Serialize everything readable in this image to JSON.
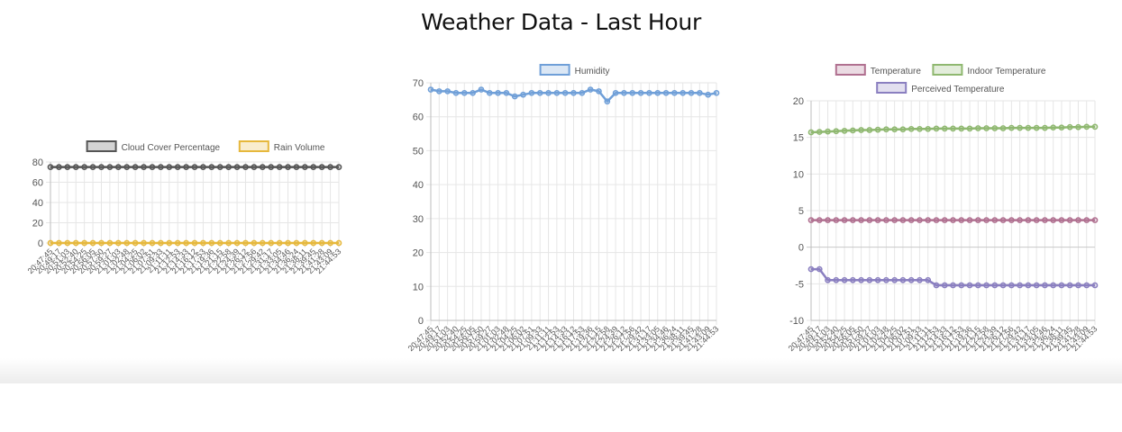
{
  "page": {
    "title": "Weather Data - Last Hour"
  },
  "chart_data": [
    {
      "type": "line",
      "x": [
        "20:47:45",
        "20:49:17",
        "20:51:03",
        "20:52:40",
        "20:54:25",
        "20:56:05",
        "20:57:50",
        "20:59:27",
        "21:01:03",
        "21:02:48",
        "21:04:25",
        "21:06:02",
        "21:07:51",
        "21:09:33",
        "21:11:11",
        "21:12:53",
        "21:14:33",
        "21:16:12",
        "21:17:53",
        "21:19:36",
        "21:21:15",
        "21:22:58",
        "21:24:39",
        "21:26:12",
        "21:27:56",
        "21:29:42",
        "21:31:17",
        "21:33:05",
        "21:34:46",
        "21:36:24",
        "21:38:11",
        "21:39:45",
        "21:41:28",
        "21:43:09",
        "21:44:53"
      ],
      "series": [
        {
          "name": "Cloud Cover Percentage",
          "color": "#555555",
          "values": [
            75,
            75,
            75,
            75,
            75,
            75,
            75,
            75,
            75,
            75,
            75,
            75,
            75,
            75,
            75,
            75,
            75,
            75,
            75,
            75,
            75,
            75,
            75,
            75,
            75,
            75,
            75,
            75,
            75,
            75,
            75,
            75,
            75,
            75,
            75
          ]
        },
        {
          "name": "Rain Volume",
          "color": "#e6b83c",
          "values": [
            0,
            0,
            0,
            0,
            0,
            0,
            0,
            0,
            0,
            0,
            0,
            0,
            0,
            0,
            0,
            0,
            0,
            0,
            0,
            0,
            0,
            0,
            0,
            0,
            0,
            0,
            0,
            0,
            0,
            0,
            0,
            0,
            0,
            0,
            0
          ]
        }
      ],
      "ylim": [
        0,
        80
      ],
      "yticks": [
        0,
        20,
        40,
        60,
        80
      ],
      "grid": true,
      "legend": "top"
    },
    {
      "type": "line",
      "x": [
        "20:47:45",
        "20:49:17",
        "20:51:03",
        "20:52:40",
        "20:54:25",
        "20:56:05",
        "20:57:50",
        "20:59:27",
        "21:01:03",
        "21:02:48",
        "21:04:25",
        "21:06:02",
        "21:07:51",
        "21:09:33",
        "21:11:11",
        "21:12:53",
        "21:14:33",
        "21:16:12",
        "21:17:53",
        "21:19:36",
        "21:21:15",
        "21:22:58",
        "21:24:39",
        "21:26:12",
        "21:27:56",
        "21:29:42",
        "21:31:17",
        "21:33:05",
        "21:34:46",
        "21:36:24",
        "21:38:11",
        "21:39:45",
        "21:41:28",
        "21:43:09",
        "21:44:53"
      ],
      "series": [
        {
          "name": "Humidity",
          "color": "#6f9fd8",
          "values": [
            68,
            67.5,
            67.5,
            67,
            67,
            67,
            68,
            67,
            67,
            67,
            66,
            66.5,
            67,
            67,
            67,
            67,
            67,
            67,
            67,
            68,
            67.5,
            64.5,
            67,
            67,
            67,
            67,
            67,
            67,
            67,
            67,
            67,
            67,
            67,
            66.5,
            67
          ]
        }
      ],
      "ylim": [
        0,
        70
      ],
      "yticks": [
        0,
        10,
        20,
        30,
        40,
        50,
        60,
        70
      ],
      "grid": true,
      "legend": "top"
    },
    {
      "type": "line",
      "x": [
        "20:47:45",
        "20:49:17",
        "20:51:03",
        "20:52:40",
        "20:54:25",
        "20:56:05",
        "20:57:50",
        "20:59:27",
        "21:01:03",
        "21:02:48",
        "21:04:25",
        "21:06:02",
        "21:07:51",
        "21:09:33",
        "21:11:11",
        "21:12:53",
        "21:14:33",
        "21:16:12",
        "21:17:53",
        "21:19:36",
        "21:21:15",
        "21:22:58",
        "21:24:39",
        "21:26:12",
        "21:27:56",
        "21:29:42",
        "21:31:17",
        "21:33:05",
        "21:34:46",
        "21:36:24",
        "21:38:11",
        "21:39:45",
        "21:41:28",
        "21:43:09",
        "21:44:53"
      ],
      "series": [
        {
          "name": "Temperature",
          "color": "#b07090",
          "values": [
            3.7,
            3.7,
            3.7,
            3.7,
            3.7,
            3.7,
            3.7,
            3.7,
            3.7,
            3.7,
            3.7,
            3.7,
            3.7,
            3.7,
            3.7,
            3.7,
            3.7,
            3.7,
            3.7,
            3.7,
            3.7,
            3.7,
            3.7,
            3.7,
            3.7,
            3.7,
            3.7,
            3.7,
            3.7,
            3.7,
            3.7,
            3.7,
            3.7,
            3.7,
            3.7
          ]
        },
        {
          "name": "Indoor Temperature",
          "color": "#8fb870",
          "values": [
            15.7,
            15.75,
            15.8,
            15.85,
            15.9,
            15.95,
            16,
            16,
            16.05,
            16.1,
            16.1,
            16.1,
            16.15,
            16.15,
            16.15,
            16.2,
            16.2,
            16.2,
            16.2,
            16.2,
            16.25,
            16.25,
            16.25,
            16.25,
            16.3,
            16.3,
            16.3,
            16.3,
            16.3,
            16.35,
            16.35,
            16.4,
            16.4,
            16.45,
            16.45
          ]
        },
        {
          "name": "Perceived Temperature",
          "color": "#8a7fc0",
          "values": [
            -3,
            -3,
            -4.5,
            -4.5,
            -4.5,
            -4.5,
            -4.5,
            -4.5,
            -4.5,
            -4.5,
            -4.5,
            -4.5,
            -4.5,
            -4.5,
            -4.5,
            -5.2,
            -5.2,
            -5.2,
            -5.2,
            -5.2,
            -5.2,
            -5.2,
            -5.2,
            -5.2,
            -5.2,
            -5.2,
            -5.2,
            -5.2,
            -5.2,
            -5.2,
            -5.2,
            -5.2,
            -5.2,
            -5.2,
            -5.2
          ]
        }
      ],
      "ylim": [
        -10,
        20
      ],
      "yticks": [
        -10,
        -5,
        0,
        5,
        10,
        15,
        20
      ],
      "grid": true,
      "legend": "top"
    }
  ]
}
